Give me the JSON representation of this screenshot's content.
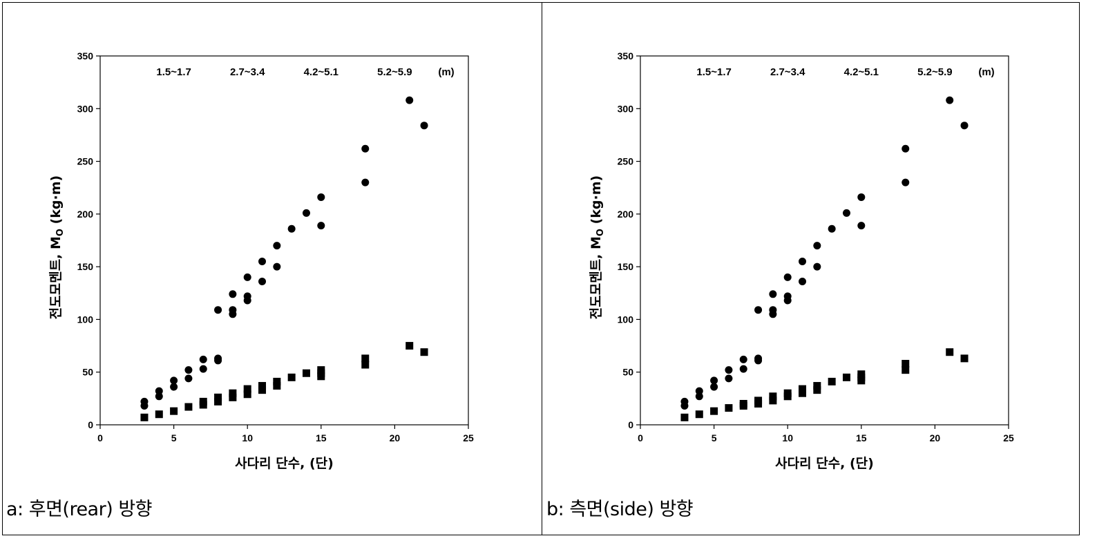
{
  "chart_data": [
    {
      "type": "scatter",
      "caption": "a: 후면(rear) 방향",
      "xlabel": "사다리 단수, (단)",
      "ylabel": "전도모멘트, Mo (kg·m)",
      "ylabel_main": "전도모멘트, M",
      "ylabel_sub": "O",
      "ylabel_unit": " (kg·m)",
      "xlim": [
        0,
        25
      ],
      "ylim": [
        0,
        350
      ],
      "xticks": [
        "0",
        "5",
        "10",
        "15",
        "20",
        "25"
      ],
      "yticks": [
        "0",
        "50",
        "100",
        "150",
        "200",
        "250",
        "300",
        "350"
      ],
      "grid": false,
      "annotations": [
        {
          "text": "1.5~1.7",
          "x": 5
        },
        {
          "text": "2.7~3.4",
          "x": 10
        },
        {
          "text": "4.2~5.1",
          "x": 15
        },
        {
          "text": "5.2~5.9",
          "x": 20
        },
        {
          "text": "(m)",
          "x": 23.5
        }
      ],
      "series": [
        {
          "marker": "circle",
          "x": [
            3,
            3,
            4,
            4,
            5,
            5,
            6,
            6,
            7,
            7,
            8,
            8,
            8,
            9,
            9,
            9,
            10,
            10,
            10,
            11,
            11,
            12,
            12,
            13,
            14,
            15,
            15,
            18,
            18,
            21,
            22
          ],
          "y": [
            22,
            18,
            32,
            27,
            42,
            36,
            52,
            44,
            62,
            53,
            63,
            61,
            109,
            124,
            109,
            105,
            140,
            122,
            118,
            155,
            136,
            170,
            150,
            186,
            201,
            216,
            189,
            262,
            230,
            308,
            284
          ]
        },
        {
          "marker": "square",
          "x": [
            3,
            4,
            5,
            6,
            7,
            7,
            8,
            8,
            9,
            9,
            10,
            10,
            11,
            11,
            12,
            12,
            13,
            14,
            15,
            15,
            15,
            18,
            18,
            21,
            22
          ],
          "y": [
            7,
            10,
            13,
            17,
            22,
            19,
            26,
            22,
            30,
            26,
            34,
            29,
            37,
            33,
            41,
            37,
            45,
            49,
            52,
            49,
            46,
            63,
            57,
            75,
            69
          ]
        }
      ]
    },
    {
      "type": "scatter",
      "caption": "b: 측면(side) 방향",
      "xlabel": "사다리 단수, (단)",
      "ylabel": "전도모멘트, Mo (kg·m)",
      "ylabel_main": "전도모멘트, M",
      "ylabel_sub": "O",
      "ylabel_unit": " (kg·m)",
      "xlim": [
        0,
        25
      ],
      "ylim": [
        0,
        350
      ],
      "xticks": [
        "0",
        "5",
        "10",
        "15",
        "20",
        "25"
      ],
      "yticks": [
        "0",
        "50",
        "100",
        "150",
        "200",
        "250",
        "300",
        "350"
      ],
      "grid": false,
      "annotations": [
        {
          "text": "1.5~1.7",
          "x": 5
        },
        {
          "text": "2.7~3.4",
          "x": 10
        },
        {
          "text": "4.2~5.1",
          "x": 15
        },
        {
          "text": "5.2~5.9",
          "x": 20
        },
        {
          "text": "(m)",
          "x": 23.5
        }
      ],
      "series": [
        {
          "marker": "circle",
          "x": [
            3,
            3,
            4,
            4,
            5,
            5,
            6,
            6,
            7,
            7,
            8,
            8,
            8,
            9,
            9,
            9,
            10,
            10,
            10,
            11,
            11,
            12,
            12,
            13,
            14,
            15,
            15,
            18,
            18,
            21,
            22
          ],
          "y": [
            22,
            18,
            32,
            27,
            42,
            36,
            52,
            44,
            62,
            53,
            63,
            61,
            109,
            124,
            109,
            105,
            140,
            122,
            118,
            155,
            136,
            170,
            150,
            186,
            201,
            216,
            189,
            262,
            230,
            308,
            284
          ]
        },
        {
          "marker": "square",
          "x": [
            3,
            4,
            5,
            6,
            7,
            7,
            8,
            8,
            9,
            9,
            10,
            10,
            11,
            11,
            12,
            12,
            13,
            14,
            15,
            15,
            15,
            18,
            18,
            21,
            22
          ],
          "y": [
            7,
            10,
            13,
            16,
            20,
            18,
            23,
            20,
            27,
            23,
            30,
            27,
            34,
            30,
            37,
            33,
            41,
            45,
            48,
            45,
            42,
            58,
            52,
            69,
            63
          ]
        }
      ]
    }
  ]
}
